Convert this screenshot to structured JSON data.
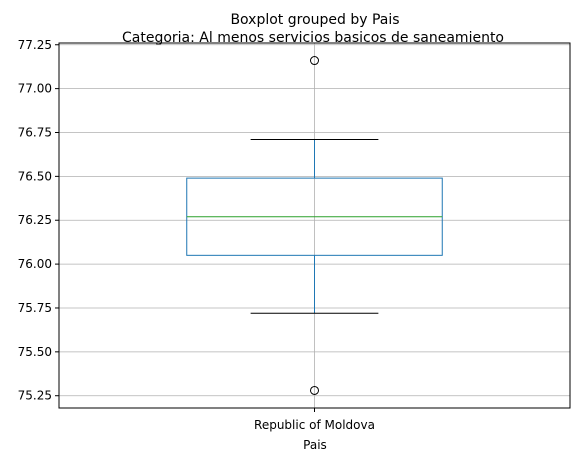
{
  "chart_data": {
    "type": "box",
    "title": "Boxplot grouped by Pais",
    "subtitle": "Categoria: Al menos servicios basicos de saneamiento",
    "xlabel": "Pais",
    "ylabel": "",
    "categories": [
      "Republic of Moldova"
    ],
    "boxes": [
      {
        "category": "Republic of Moldova",
        "whisker_low": 75.72,
        "q1": 76.05,
        "median": 76.27,
        "q3": 76.49,
        "whisker_high": 76.71,
        "outliers": [
          77.16,
          75.28
        ]
      }
    ],
    "ylim": [
      75.18,
      77.26
    ],
    "yticks": [
      "75.25",
      "75.50",
      "75.75",
      "76.00",
      "76.25",
      "76.50",
      "76.75",
      "77.00",
      "77.25"
    ],
    "grid": true,
    "colors": {
      "box": "#1f77b4",
      "median": "#2ca02c",
      "whisker": "#1f77b4",
      "cap": "#000000",
      "grid": "#b0b0b0"
    }
  }
}
